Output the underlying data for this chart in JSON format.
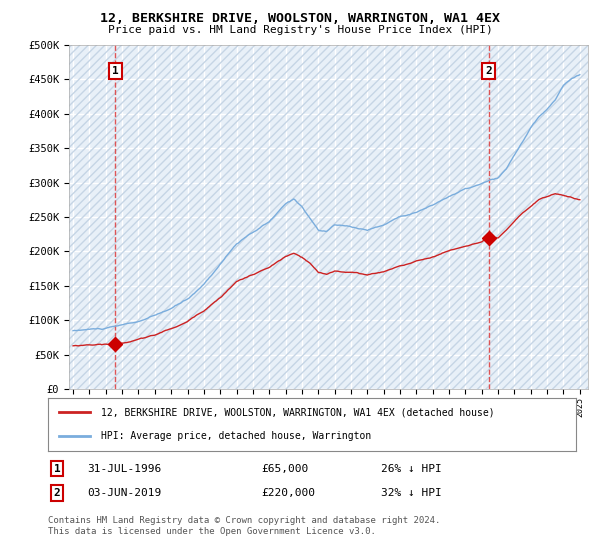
{
  "title": "12, BERKSHIRE DRIVE, WOOLSTON, WARRINGTON, WA1 4EX",
  "subtitle": "Price paid vs. HM Land Registry's House Price Index (HPI)",
  "ylim": [
    0,
    500000
  ],
  "yticks": [
    0,
    50000,
    100000,
    150000,
    200000,
    250000,
    300000,
    350000,
    400000,
    450000,
    500000
  ],
  "ytick_labels": [
    "£0",
    "£50K",
    "£100K",
    "£150K",
    "£200K",
    "£250K",
    "£300K",
    "£350K",
    "£400K",
    "£450K",
    "£500K"
  ],
  "xlim_start": 1993.75,
  "xlim_end": 2025.5,
  "background_color": "#ffffff",
  "plot_bg_color": "#e8f0f8",
  "grid_color": "#ffffff",
  "sale1_x": 1996.58,
  "sale1_y": 65000,
  "sale1_label": "1",
  "sale1_date": "31-JUL-1996",
  "sale1_price": "£65,000",
  "sale1_hpi": "26% ↓ HPI",
  "sale2_x": 2019.42,
  "sale2_y": 220000,
  "sale2_label": "2",
  "sale2_date": "03-JUN-2019",
  "sale2_price": "£220,000",
  "sale2_hpi": "32% ↓ HPI",
  "line_color_property": "#cc2222",
  "line_color_hpi": "#7aaddd",
  "marker_color": "#cc0000",
  "annotation_box_color": "#cc0000",
  "dashed_line_color": "#dd4444",
  "legend_label_property": "12, BERKSHIRE DRIVE, WOOLSTON, WARRINGTON, WA1 4EX (detached house)",
  "legend_label_hpi": "HPI: Average price, detached house, Warrington",
  "copyright_text": "Contains HM Land Registry data © Crown copyright and database right 2024.\nThis data is licensed under the Open Government Licence v3.0."
}
